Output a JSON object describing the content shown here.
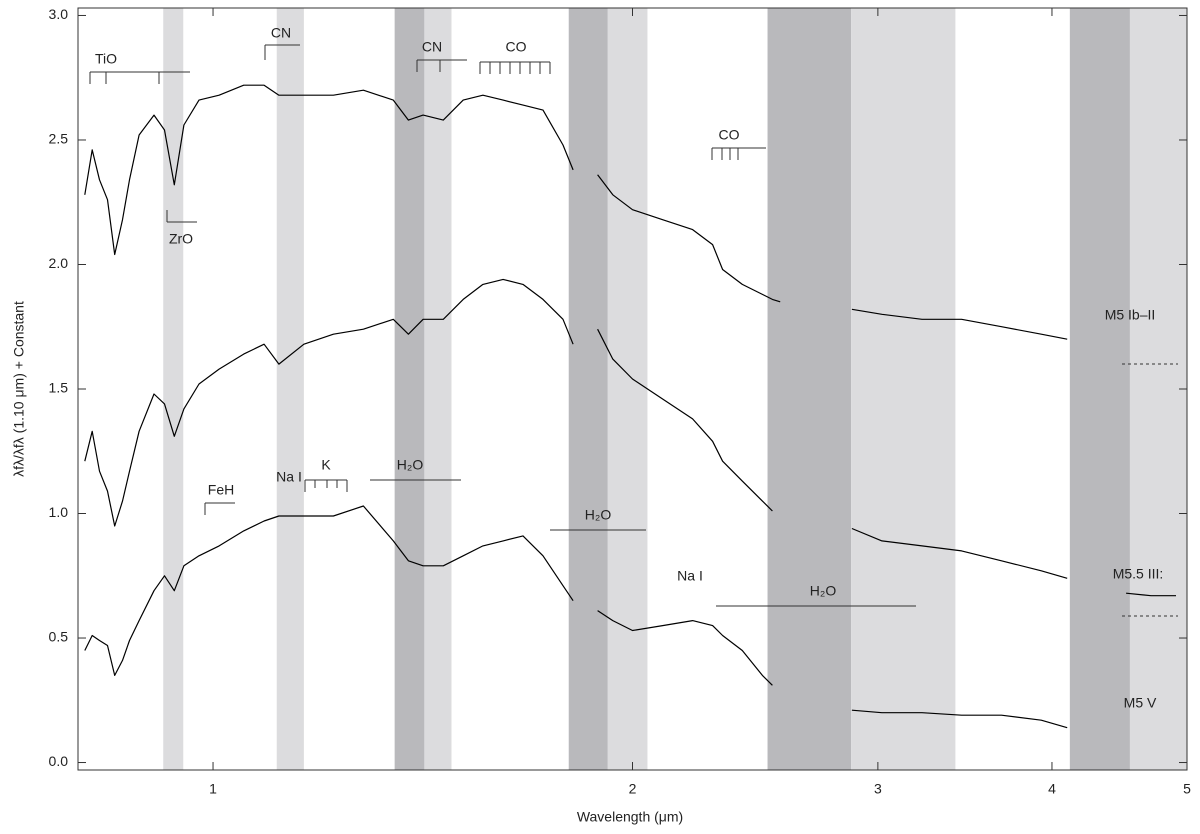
{
  "chart_data": {
    "type": "line",
    "x_label": "Wavelength (μm)",
    "y_label": "λfλ/λfλ (1.10 μm) + Constant",
    "xscale": "log",
    "xlim": [
      0.8,
      5
    ],
    "xticks": [
      1,
      2,
      3,
      4,
      5
    ],
    "ylim": [
      -0.03,
      3.03
    ],
    "yticks": [
      {
        "value": 0,
        "label": "0.0"
      },
      0.5,
      {
        "value": 1,
        "label": "1.0"
      },
      1.5,
      {
        "value": 2,
        "label": "2.0"
      },
      2.5,
      {
        "value": 3,
        "label": "3.0"
      }
    ],
    "grid": false,
    "bands": [
      {
        "range": [
          0.921,
          0.952
        ],
        "color": "#dcdcde"
      },
      {
        "range": [
          1.111,
          1.162
        ],
        "color": "#dcdcde"
      },
      {
        "range": [
          1.35,
          1.418
        ],
        "color": "#b9b9bc"
      },
      {
        "range": [
          1.418,
          1.483
        ],
        "color": "#dcdcde"
      },
      {
        "range": [
          1.8,
          1.92
        ],
        "color": "#b9b9bc"
      },
      {
        "range": [
          1.92,
          2.05
        ],
        "color": "#dcdcde"
      },
      {
        "range": [
          2.5,
          2.87
        ],
        "color": "#b9b9bc"
      },
      {
        "range": [
          2.87,
          3.41
        ],
        "color": "#dcdcde"
      },
      {
        "range": [
          4.12,
          4.55
        ],
        "color": "#b9b9bc"
      },
      {
        "range": [
          4.55,
          5.0
        ],
        "color": "#dcdcde"
      }
    ],
    "x": [
      0.809,
      0.819,
      0.829,
      0.84,
      0.85,
      0.861,
      0.871,
      0.885,
      0.907,
      0.923,
      0.938,
      0.953,
      0.977,
      1.01,
      1.052,
      1.088,
      1.115,
      1.162,
      1.22,
      1.282,
      1.347,
      1.381,
      1.415,
      1.463,
      1.512,
      1.562,
      1.615,
      1.669,
      1.725,
      1.783,
      1.813,
      1.85,
      1.888,
      1.936,
      2.0,
      2.102,
      2.209,
      2.283,
      2.321,
      2.398,
      2.479,
      2.52,
      2.553,
      2.7,
      2.874,
      3.02,
      3.227,
      3.445,
      3.68,
      3.93,
      4.102,
      4.3,
      4.521,
      4.711,
      4.91
    ],
    "series": [
      {
        "name": "M5 Ib–II",
        "color": "#000000",
        "values": [
          2.28,
          2.46,
          2.34,
          2.26,
          2.04,
          2.18,
          2.34,
          2.52,
          2.6,
          2.54,
          2.32,
          2.56,
          2.66,
          2.68,
          2.72,
          2.72,
          2.68,
          2.68,
          2.68,
          2.7,
          2.66,
          2.58,
          2.6,
          2.58,
          2.66,
          2.68,
          2.66,
          2.64,
          2.62,
          2.48,
          2.38,
          null,
          2.36,
          2.28,
          2.22,
          2.18,
          2.14,
          2.08,
          1.98,
          1.92,
          1.88,
          1.86,
          1.85,
          null,
          1.82,
          1.8,
          1.78,
          1.78,
          1.75,
          1.72,
          1.7,
          null,
          null,
          null,
          null
        ]
      },
      {
        "name": "M5.5 III:",
        "color": "#000000",
        "values": [
          1.21,
          1.33,
          1.17,
          1.09,
          0.95,
          1.05,
          1.17,
          1.33,
          1.48,
          1.44,
          1.31,
          1.42,
          1.52,
          1.58,
          1.64,
          1.68,
          1.6,
          1.68,
          1.72,
          1.74,
          1.78,
          1.72,
          1.78,
          1.78,
          1.86,
          1.92,
          1.94,
          1.92,
          1.86,
          1.78,
          1.68,
          null,
          1.74,
          1.62,
          1.54,
          1.46,
          1.38,
          1.29,
          1.21,
          1.13,
          1.05,
          1.01,
          null,
          null,
          0.94,
          0.89,
          0.87,
          0.85,
          0.81,
          0.77,
          0.74,
          null,
          0.68,
          0.67,
          0.67
        ]
      },
      {
        "name": "M5 V",
        "color": "#000000",
        "values": [
          0.45,
          0.51,
          0.49,
          0.47,
          0.35,
          0.41,
          0.49,
          0.57,
          0.69,
          0.75,
          0.69,
          0.79,
          0.83,
          0.87,
          0.93,
          0.97,
          0.99,
          0.99,
          0.99,
          1.03,
          0.89,
          0.81,
          0.79,
          0.79,
          0.83,
          0.87,
          0.89,
          0.91,
          0.83,
          0.71,
          0.65,
          null,
          0.61,
          0.57,
          0.53,
          0.55,
          0.57,
          0.55,
          0.51,
          0.45,
          0.35,
          0.31,
          null,
          null,
          0.21,
          0.2,
          0.2,
          0.19,
          0.19,
          0.17,
          0.14,
          null,
          null,
          null,
          null
        ]
      }
    ],
    "annotations": [
      "TiO",
      "ZrO",
      "CN",
      "CN",
      "CO",
      "CO",
      "FeH",
      "Na I",
      "K",
      "H₂O",
      "H₂O",
      "Na I",
      "H₂O"
    ]
  }
}
